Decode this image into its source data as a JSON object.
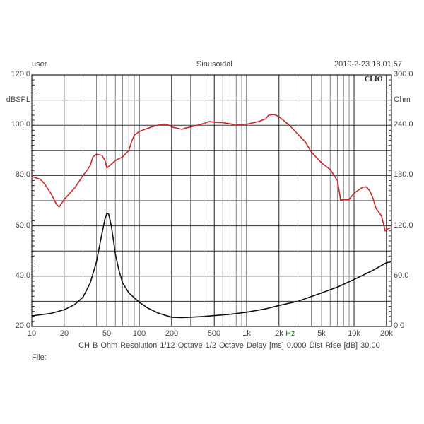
{
  "header": {
    "user": "user",
    "mode": "Sinusoidal",
    "datetime": "2019-2-23 18.01.57",
    "logo": "CLIO"
  },
  "footer": {
    "info_line": "CH B   Ohm   Resolution 1/12 Octave   1/2 Octave   Delay [ms] 0.000   Dist Rise [dB] 30.00",
    "file_label": "File:"
  },
  "colors": {
    "spl_curve": "#c8282d",
    "impedance_curve": "#111111",
    "grid": "#222222",
    "minor_grid": "#888888",
    "text": "#444444"
  },
  "chart_data": {
    "type": "line",
    "title": "",
    "xlabel": "Hz",
    "ylabel": "dBSPL",
    "ylabel_right": "Ohm",
    "xscale": "log",
    "xlim": [
      10,
      22000
    ],
    "ylim": [
      20,
      120
    ],
    "ylim_right": [
      0,
      300
    ],
    "grid": true,
    "x_ticks": [
      10,
      20,
      50,
      100,
      200,
      500,
      1000,
      2000,
      5000,
      10000,
      20000
    ],
    "x_tick_labels": [
      "10",
      "20",
      "50",
      "100",
      "200",
      "500",
      "1k",
      "2k",
      "5k",
      "10k",
      "20k"
    ],
    "y_ticks_left": [
      "120.0",
      "dBSPL",
      "100.0",
      "80.0",
      "60.0",
      "40.0",
      "20.0"
    ],
    "y_tick_values_left": [
      120,
      110,
      100,
      80,
      60,
      40,
      20
    ],
    "y_ticks_right": [
      "300.0",
      "Ohm",
      "240.0",
      "180.0",
      "120.0",
      "60.0",
      "0.0"
    ],
    "y_tick_values_right": [
      300,
      270,
      240,
      180,
      120,
      60,
      0
    ],
    "series": [
      {
        "name": "SPL (dBSPL)",
        "axis": "left",
        "color": "#c8282d",
        "x": [
          10,
          12,
          13,
          15,
          17,
          18,
          20,
          25,
          30,
          33,
          35,
          37,
          40,
          45,
          48,
          50,
          55,
          60,
          70,
          80,
          85,
          90,
          100,
          115,
          130,
          150,
          170,
          185,
          200,
          250,
          270,
          300,
          350,
          400,
          450,
          500,
          600,
          700,
          800,
          900,
          1000,
          1300,
          1500,
          1600,
          1800,
          2000,
          2500,
          3000,
          3500,
          4000,
          4500,
          5000,
          6000,
          7000,
          7500,
          8000,
          9000,
          10000,
          12000,
          13000,
          14000,
          15000,
          16000,
          18000,
          19500,
          21000,
          22000
        ],
        "values": [
          79.6,
          78.5,
          77.0,
          73.0,
          68.5,
          67.5,
          70.5,
          75.0,
          80.0,
          82.3,
          84.0,
          87.4,
          88.5,
          88.0,
          86.0,
          83.0,
          84.5,
          86.0,
          87.4,
          90.0,
          93.5,
          96.0,
          97.5,
          98.5,
          99.3,
          100.0,
          100.4,
          100.2,
          99.3,
          98.4,
          98.9,
          99.3,
          100.0,
          100.7,
          101.5,
          101.2,
          101.0,
          100.6,
          100.0,
          100.3,
          100.4,
          101.5,
          102.5,
          104.0,
          104.3,
          103.4,
          100.0,
          96.4,
          93.5,
          89.4,
          87.0,
          85.0,
          82.4,
          78.0,
          70.3,
          70.5,
          70.5,
          73.0,
          75.3,
          75.5,
          74.0,
          71.0,
          67.0,
          64.0,
          58.0,
          59.0,
          59.2
        ]
      },
      {
        "name": "Impedance (Ohm)",
        "axis": "right",
        "color": "#111111",
        "x": [
          10,
          15,
          20,
          25,
          30,
          35,
          40,
          43,
          45,
          48,
          50,
          52,
          55,
          58,
          60,
          65,
          70,
          80,
          100,
          120,
          150,
          200,
          250,
          300,
          400,
          500,
          700,
          1000,
          1500,
          2000,
          3000,
          5000,
          7000,
          10000,
          15000,
          20000,
          22000
        ],
        "values": [
          12.6,
          15.5,
          20.0,
          26.0,
          35.0,
          52.0,
          77.0,
          98.0,
          111.0,
          128.0,
          135.0,
          134.0,
          120.0,
          100.0,
          86.0,
          66.0,
          52.0,
          40.0,
          29.0,
          22.0,
          16.0,
          11.0,
          10.5,
          11.0,
          12.0,
          13.0,
          14.5,
          17.0,
          21.0,
          25.0,
          30.0,
          40.0,
          47.0,
          56.0,
          67.0,
          76.0,
          77.0
        ]
      }
    ]
  }
}
